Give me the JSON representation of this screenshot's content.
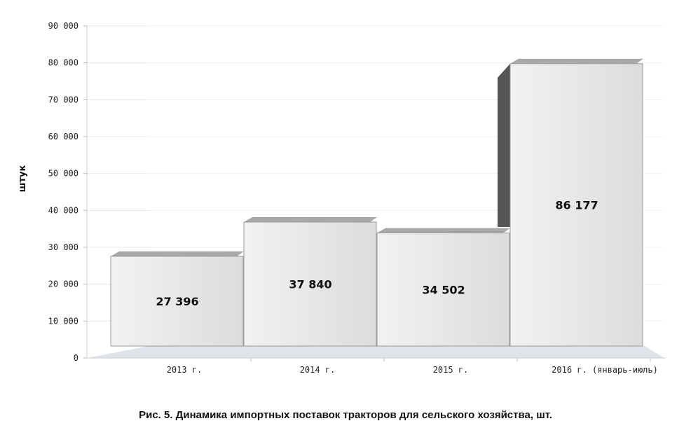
{
  "caption": "Рис. 5. Динамика импортных поставок тракторов для сельского хозяйства, шт.",
  "chart_data": {
    "type": "bar",
    "categories": [
      "2013 г.",
      "2014 г.",
      "2015 г.",
      "2016 г. (январь-июль)"
    ],
    "values": [
      27396,
      37840,
      34502,
      86177
    ],
    "value_labels": [
      "27 396",
      "37 840",
      "34 502",
      "86 177"
    ],
    "ylabel": "штук",
    "ylim": [
      0,
      90000
    ],
    "yticks": [
      0,
      10000,
      20000,
      30000,
      40000,
      50000,
      60000,
      70000,
      80000,
      90000
    ],
    "ytick_labels": [
      "0",
      "10 000",
      "20 000",
      "30 000",
      "40 000",
      "50 000",
      "60 000",
      "70 000",
      "80 000",
      "90 000"
    ],
    "grid": true,
    "legend": "none",
    "style": "3d",
    "colors": {
      "bar_face": "#e6e6e6",
      "bar_top": "#a8a8a8",
      "bar_side": "#555555",
      "floor": "#dfe3ea"
    }
  }
}
